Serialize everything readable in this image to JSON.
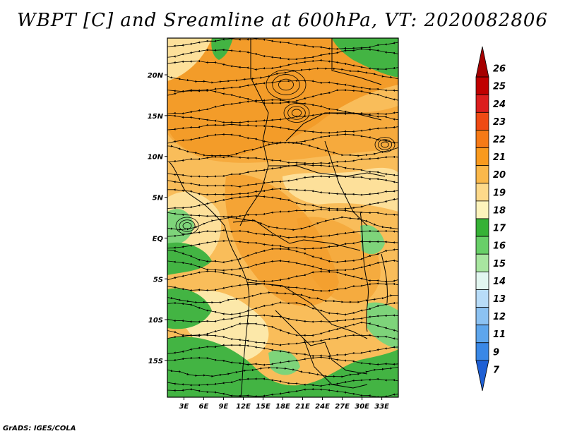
{
  "title": "WBPT [C] and Sreamline at 600hPa, VT: 2020082806",
  "footer": "GrADS: IGES/COLA",
  "lon_labels": [
    "3E",
    "6E",
    "9E",
    "12E",
    "15E",
    "18E",
    "21E",
    "24E",
    "27E",
    "30E",
    "33E"
  ],
  "lon_values": [
    3,
    6,
    9,
    12,
    15,
    18,
    21,
    24,
    27,
    30,
    33
  ],
  "lat_labels": [
    "20N",
    "15N",
    "10N",
    "5N",
    "EQ",
    "5S",
    "10S",
    "15S"
  ],
  "lat_values": [
    20,
    15,
    10,
    5,
    0,
    -5,
    -10,
    -15
  ],
  "extent": {
    "lon_min": 0.5,
    "lon_max": 35.5,
    "lat_min": -19.5,
    "lat_max": 24.5
  },
  "colorbar": {
    "labels": [
      "26",
      "25",
      "24",
      "23",
      "22",
      "21",
      "20",
      "19",
      "18",
      "17",
      "16",
      "15",
      "14",
      "13",
      "12",
      "11",
      "9",
      "7"
    ],
    "colors": [
      "#a50000",
      "#c00000",
      "#dc1e1e",
      "#ef4a14",
      "#f67a16",
      "#f99a1e",
      "#fab84a",
      "#fdd98a",
      "#fdf3bc",
      "#36b236",
      "#68cf68",
      "#a8e6a0",
      "#e2f6f0",
      "#b8dcf8",
      "#8cc2f2",
      "#5ea6ec",
      "#3a88e6",
      "#1e5fd4"
    ]
  },
  "field_colors": {
    "warm_high": "#f39c2a",
    "warm": "#f9bd5a",
    "warm_low": "#fde09a",
    "pale": "#fdf2bd",
    "green": "#43b443",
    "green_light": "#7ed47a"
  }
}
